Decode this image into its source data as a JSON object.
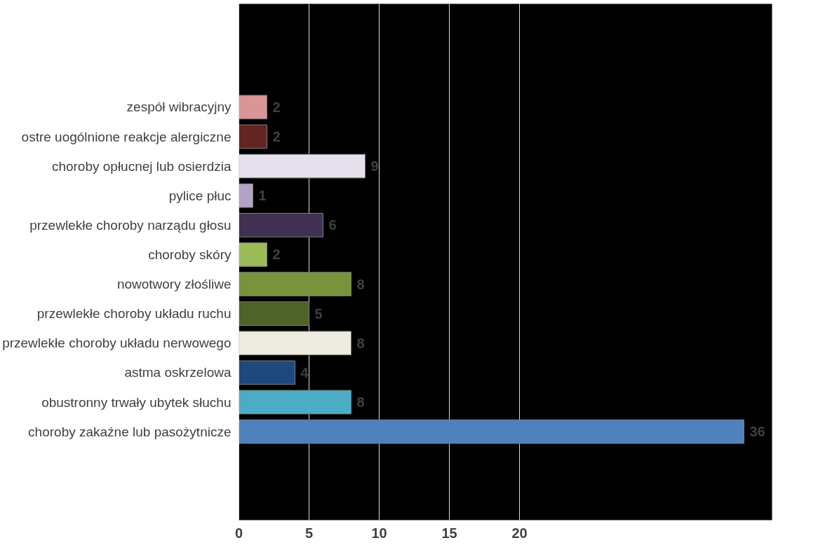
{
  "chart_data": {
    "type": "bar",
    "orientation": "horizontal",
    "categories": [
      "zespół wibracyjny",
      "ostre uogólnione reakcje alergiczne",
      "choroby opłucnej lub osierdzia",
      "pylice płuc",
      "przewlekłe choroby narządu głosu",
      "choroby skóry",
      "nowotwory złośliwe",
      "przewlekłe choroby układu ruchu",
      "przewlekłe choroby układu nerwowego",
      "astma oskrzelowa",
      "obustronny trwały ubytek słuchu",
      "choroby zakaźne lub pasożytnicze"
    ],
    "values": [
      2,
      2,
      9,
      1,
      6,
      2,
      8,
      5,
      8,
      4,
      8,
      36
    ],
    "colors": [
      "#d99694",
      "#632523",
      "#e6e0ec",
      "#b3a2c7",
      "#403152",
      "#9bbb59",
      "#77933c",
      "#4f6228",
      "#eeece1",
      "#1f497d",
      "#4bacc6",
      "#4f81bd"
    ],
    "xlim": [
      0,
      38
    ],
    "xticks": [
      0,
      5,
      10,
      15,
      20
    ],
    "grid": "x",
    "data_labels": true
  }
}
